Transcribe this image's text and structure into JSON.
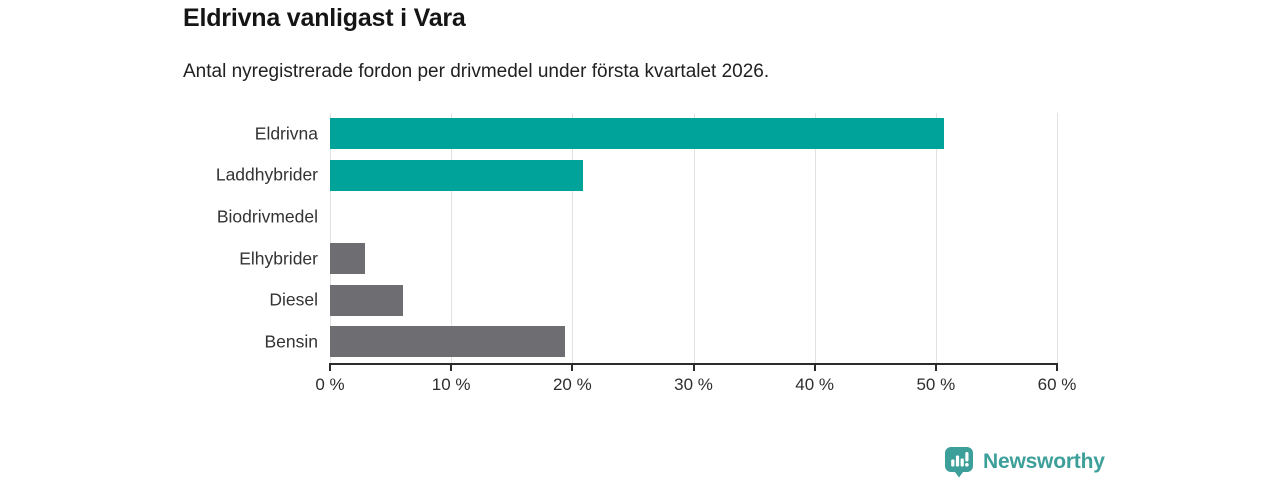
{
  "header": {
    "title": "Eldrivna vanligast i Vara",
    "subtitle": "Antal nyregistrerade fordon per drivmedel under första kvartalet 2026."
  },
  "chart_data": {
    "type": "bar",
    "orientation": "horizontal",
    "title": "Eldrivna vanligast i Vara",
    "subtitle": "Antal nyregistrerade fordon per drivmedel under första kvartalet 2026.",
    "categories": [
      "Eldrivna",
      "Laddhybrider",
      "Biodrivmedel",
      "Elhybrider",
      "Diesel",
      "Bensin"
    ],
    "values": [
      50.7,
      20.9,
      0,
      2.9,
      6,
      19.4
    ],
    "unit": "%",
    "series_colors": [
      "#00a39a",
      "#00a39a",
      "#6e6d72",
      "#6e6d72",
      "#6e6d72",
      "#6e6d72"
    ],
    "x_tick_labels": [
      "0 %",
      "10 %",
      "20 %",
      "30 %",
      "40 %",
      "50 %",
      "60 %"
    ],
    "xlim": [
      0,
      60
    ],
    "grid": true,
    "gridline_color": "#e2e2e2",
    "axis_color": "#2b2b2b",
    "legend": "none"
  },
  "footer": {
    "brand": "Newsworthy",
    "brand_color": "#3d9f99",
    "icon": "newsworthy-logo-icon"
  }
}
